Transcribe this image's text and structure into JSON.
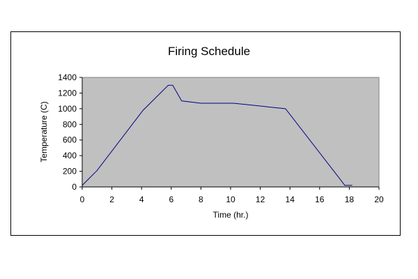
{
  "chart_data": {
    "type": "line",
    "title": "Firing Schedule",
    "xlabel": "Time (hr.)",
    "ylabel": "Temperature (C)",
    "xlim": [
      0,
      20
    ],
    "ylim": [
      0,
      1400
    ],
    "xticks": [
      0,
      2,
      4,
      6,
      8,
      10,
      12,
      14,
      16,
      18,
      20
    ],
    "yticks": [
      0,
      200,
      400,
      600,
      800,
      1000,
      1200,
      1400
    ],
    "grid": false,
    "legend": "none",
    "plot_background": "#C0C0C0",
    "series": [
      {
        "color": "#000080",
        "x": [
          0,
          1,
          4.1,
          5.8,
          6.1,
          6.7,
          8,
          10.2,
          13.7,
          17.7,
          18.2
        ],
        "y": [
          20,
          210,
          980,
          1300,
          1300,
          1100,
          1070,
          1070,
          1000,
          20,
          20
        ]
      }
    ]
  }
}
